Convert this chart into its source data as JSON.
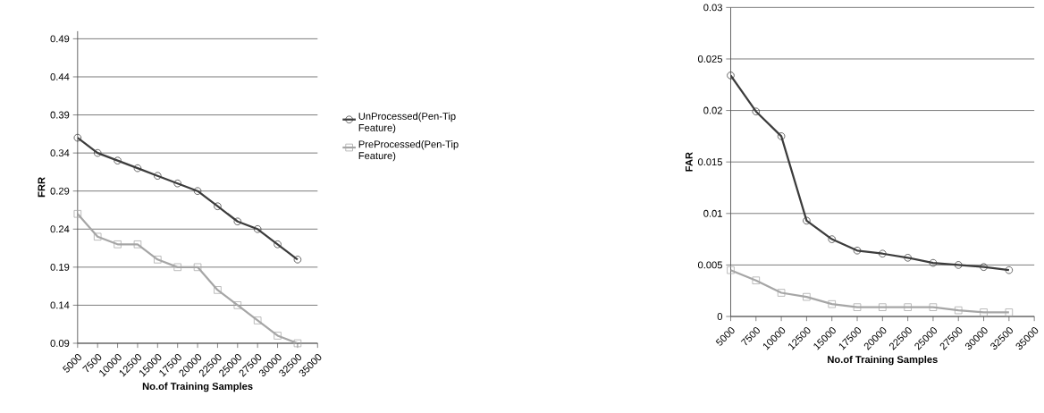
{
  "chart_data": [
    {
      "type": "line",
      "xlabel": "No.of Training Samples",
      "ylabel": "FRR",
      "x": [
        5000,
        7500,
        10000,
        12500,
        15000,
        17500,
        20000,
        22500,
        25000,
        27500,
        30000,
        32500
      ],
      "xlim": [
        5000,
        35000
      ],
      "xticks": [
        5000,
        7500,
        10000,
        12500,
        15000,
        17500,
        20000,
        22500,
        25000,
        27500,
        30000,
        32500,
        35000
      ],
      "ylim": [
        0.09,
        0.5
      ],
      "yticks": [
        0.09,
        0.14,
        0.19,
        0.24,
        0.29,
        0.34,
        0.39,
        0.44,
        0.49
      ],
      "grid": "y",
      "legend": "right",
      "series": [
        {
          "name": "UnProcessed(Pen-Tip Feature)",
          "color": "#3c3c3c",
          "marker": "circle",
          "values": [
            0.36,
            0.34,
            0.33,
            0.32,
            0.31,
            0.3,
            0.29,
            0.27,
            0.25,
            0.24,
            0.22,
            0.2
          ]
        },
        {
          "name": "PreProcessed(Pen-Tip Feature)",
          "color": "#a6a6a6",
          "marker": "square",
          "values": [
            0.26,
            0.23,
            0.22,
            0.22,
            0.2,
            0.19,
            0.19,
            0.16,
            0.14,
            0.12,
            0.1,
            0.09
          ]
        }
      ]
    },
    {
      "type": "line",
      "xlabel": "No.of Training Samples",
      "ylabel": "FAR",
      "x": [
        5000,
        7500,
        10000,
        12500,
        15000,
        17500,
        20000,
        22500,
        25000,
        27500,
        30000,
        32500
      ],
      "xlim": [
        5000,
        35000
      ],
      "xticks": [
        5000,
        7500,
        10000,
        12500,
        15000,
        17500,
        20000,
        22500,
        25000,
        27500,
        30000,
        32500,
        35000
      ],
      "ylim": [
        0,
        0.03
      ],
      "yticks": [
        0,
        0.005,
        0.01,
        0.015,
        0.02,
        0.025,
        0.03
      ],
      "grid": "y",
      "series": [
        {
          "color": "#3c3c3c",
          "marker": "circle",
          "values": [
            0.0234,
            0.0199,
            0.0175,
            0.0093,
            0.0075,
            0.0064,
            0.0061,
            0.0057,
            0.0052,
            0.005,
            0.0048,
            0.0045
          ]
        },
        {
          "color": "#a6a6a6",
          "marker": "square",
          "values": [
            0.0045,
            0.0035,
            0.0023,
            0.0019,
            0.0012,
            0.0009,
            0.0009,
            0.0009,
            0.0009,
            0.0006,
            0.0004,
            0.0004
          ]
        }
      ]
    }
  ]
}
